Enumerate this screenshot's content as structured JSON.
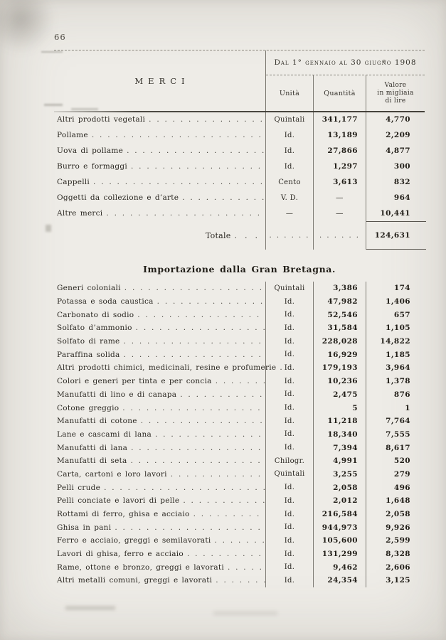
{
  "page": {
    "number": "66"
  },
  "table1": {
    "period_header": "Dal 1° gennaio al 30 giugno 1908",
    "columns": {
      "merci": "MERCI",
      "unita": "Unità",
      "quantita": "Quantità",
      "valore_lines": [
        "Valore",
        "in migliaia",
        "di lire"
      ]
    },
    "rows": [
      {
        "label": "Altri prodotti vegetali",
        "unit": "Quintali",
        "qty": "341,177",
        "value": "4,770"
      },
      {
        "label": "Pollame",
        "unit": "Id.",
        "qty": "13,189",
        "value": "2,209"
      },
      {
        "label": "Uova di pollame",
        "unit": "Id.",
        "qty": "27,866",
        "value": "4,877"
      },
      {
        "label": "Burro e formaggi",
        "unit": "Id.",
        "qty": "1,297",
        "value": "300"
      },
      {
        "label": "Cappelli",
        "unit": "Cento",
        "qty": "3,613",
        "value": "832"
      },
      {
        "label": "Oggetti da collezione e d’arte",
        "unit": "V. D.",
        "qty": "—",
        "value": "964"
      },
      {
        "label": "Altre merci",
        "unit": "—",
        "qty": "—",
        "value": "10,441"
      }
    ],
    "total": {
      "label": "Totale",
      "value": "124,631"
    }
  },
  "section2": {
    "title": "Importazione dalla Gran Bretagna.",
    "rows": [
      {
        "label": "Generi coloniali",
        "unit": "Quintali",
        "qty": "3,386",
        "value": "174"
      },
      {
        "label": "Potassa e soda caustica",
        "unit": "Id.",
        "qty": "47,982",
        "value": "1,406"
      },
      {
        "label": "Carbonato di sodio",
        "unit": "Id.",
        "qty": "52,546",
        "value": "657"
      },
      {
        "label": "Solfato d’ammonio",
        "unit": "Id.",
        "qty": "31,584",
        "value": "1,105"
      },
      {
        "label": "Solfato di rame",
        "unit": "Id.",
        "qty": "228,028",
        "value": "14,822"
      },
      {
        "label": "Paraffina solida",
        "unit": "Id.",
        "qty": "16,929",
        "value": "1,185"
      },
      {
        "label": "Altri prodotti chimici, medicinali, resine e profumerie",
        "unit": "Id.",
        "qty": "179,193",
        "value": "3,964"
      },
      {
        "label": "Colori e generi per tinta e per concia",
        "unit": "Id.",
        "qty": "10,236",
        "value": "1,378"
      },
      {
        "label": "Manufatti di lino e di canapa",
        "unit": "Id.",
        "qty": "2,475",
        "value": "876"
      },
      {
        "label": "Cotone greggio",
        "unit": "Id.",
        "qty": "5",
        "value": "1"
      },
      {
        "label": "Manufatti di cotone",
        "unit": "Id.",
        "qty": "11,218",
        "value": "7,764"
      },
      {
        "label": "Lane e cascami di lana",
        "unit": "Id.",
        "qty": "18,340",
        "value": "7,555"
      },
      {
        "label": "Manufatti di lana",
        "unit": "Id.",
        "qty": "7,394",
        "value": "8,617"
      },
      {
        "label": "Manufatti di seta",
        "unit": "Chilogr.",
        "qty": "4,991",
        "value": "520"
      },
      {
        "label": "Carta, cartoni e loro lavori",
        "unit": "Quintali",
        "qty": "3,255",
        "value": "279"
      },
      {
        "label": "Pelli crude",
        "unit": "Id.",
        "qty": "2,058",
        "value": "496"
      },
      {
        "label": "Pelli conciate e lavori di pelle",
        "unit": "Id.",
        "qty": "2,012",
        "value": "1,648"
      },
      {
        "label": "Rottami di ferro, ghisa e acciaio",
        "unit": "Id.",
        "qty": "216,584",
        "value": "2,058"
      },
      {
        "label": "Ghisa in pani",
        "unit": "Id.",
        "qty": "944,973",
        "value": "9,926"
      },
      {
        "label": "Ferro e acciaio, greggi e semilavorati",
        "unit": "Id.",
        "qty": "105,600",
        "value": "2,599"
      },
      {
        "label": "Lavori di ghisa, ferro e acciaio",
        "unit": "Id.",
        "qty": "131,299",
        "value": "8,328"
      },
      {
        "label": "Rame, ottone e bronzo, greggi e lavorati",
        "unit": "Id.",
        "qty": "9,462",
        "value": "2,606"
      },
      {
        "label": "Altri metalli comuni, greggi e lavorati",
        "unit": "Id.",
        "qty": "24,354",
        "value": "3,125"
      }
    ]
  }
}
